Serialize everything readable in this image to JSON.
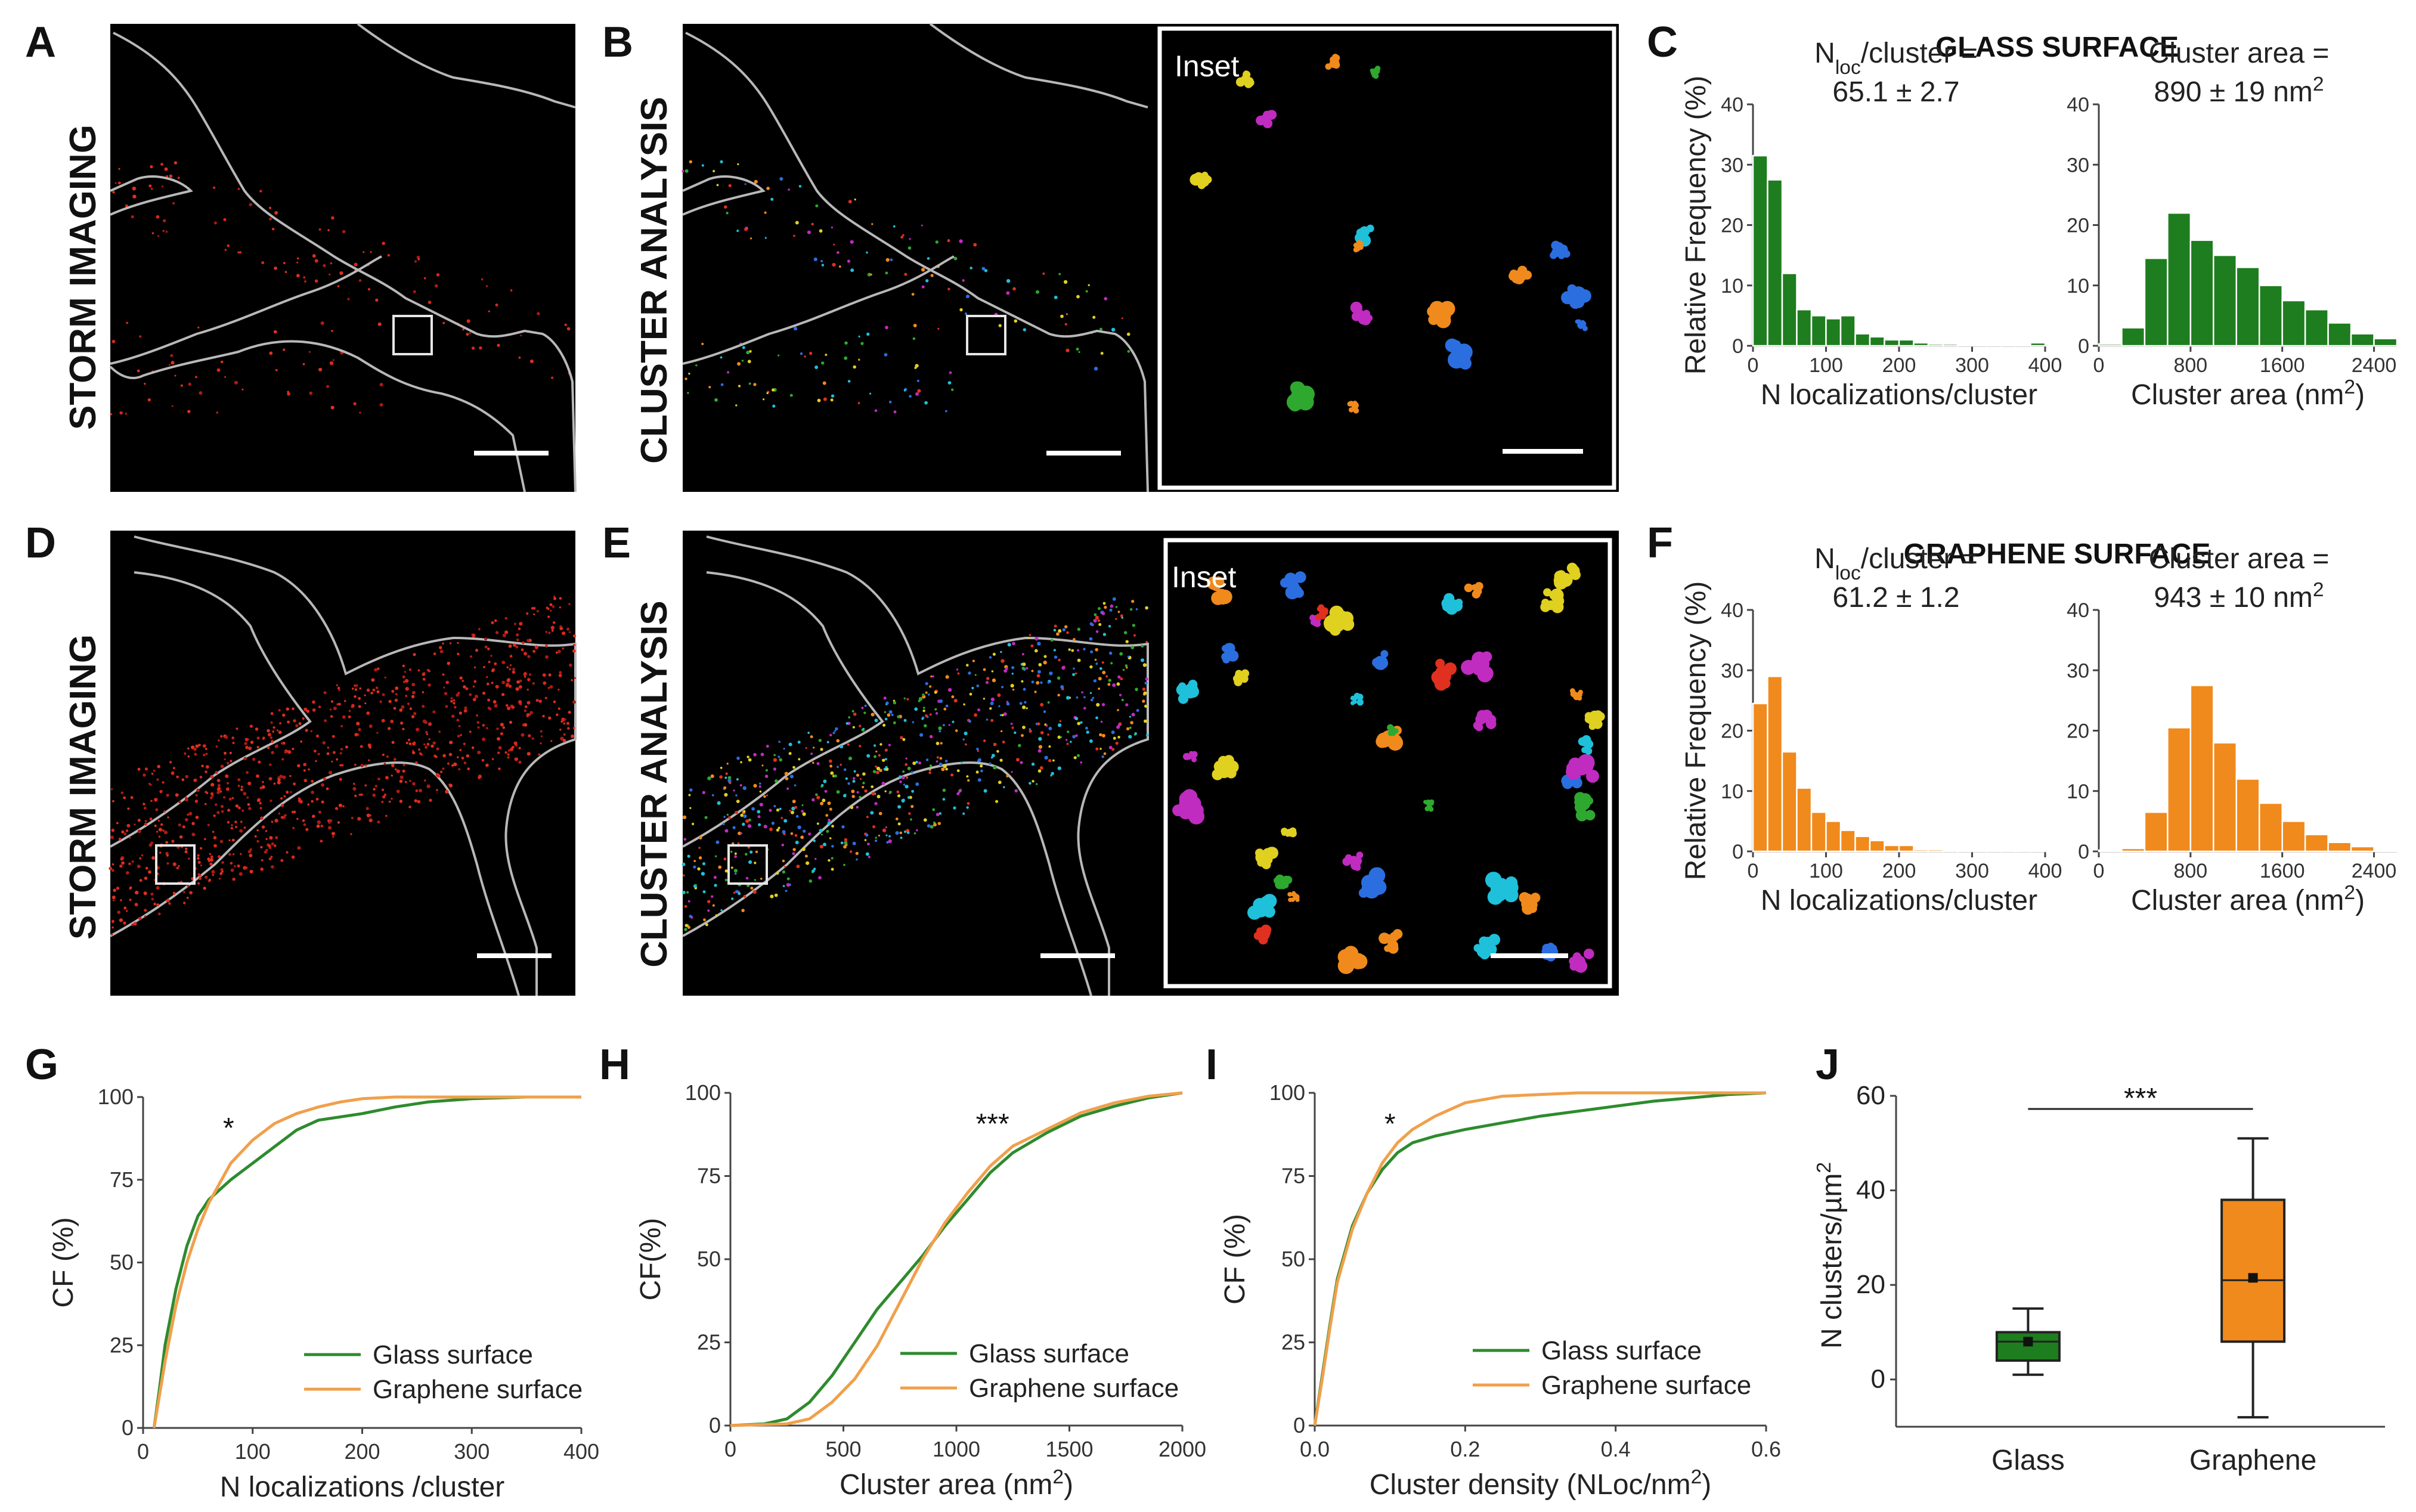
{
  "panels": {
    "A": {
      "letter": "A",
      "label": "STORM IMAGING"
    },
    "B": {
      "letter": "B",
      "label": "CLUSTER ANALYSIS",
      "inset": "Inset"
    },
    "C": {
      "letter": "C",
      "title": "GLASS SURFACE"
    },
    "D": {
      "letter": "D",
      "label": "STORM IMAGING"
    },
    "E": {
      "letter": "E",
      "label": "CLUSTER ANALYSIS",
      "inset": "Inset"
    },
    "F": {
      "letter": "F",
      "title": "GRAPHENE SURFACE"
    },
    "G": {
      "letter": "G"
    },
    "H": {
      "letter": "H"
    },
    "I": {
      "letter": "I"
    },
    "J": {
      "letter": "J"
    }
  },
  "colors": {
    "glass": "#1e7d1e",
    "graphene": "#f08a1c",
    "glass_line": "#2e8b2e",
    "graphene_line": "#f0a04b",
    "outline": "#b8b8b8"
  },
  "chart_data": [
    {
      "id": "C-nloc",
      "type": "bar",
      "panel": "C",
      "annotation_line1": "N",
      "annotation_sub": "loc",
      "annotation_rest": "/cluster =",
      "annotation_line2": "65.1 ± 2.7",
      "xlabel": "N localizations/cluster",
      "ylabel": "Relative Frequency (%)",
      "xlim": [
        0,
        400
      ],
      "ylim": [
        0,
        40
      ],
      "xticks": [
        0,
        100,
        200,
        300,
        400
      ],
      "yticks": [
        0,
        10,
        20,
        30,
        40
      ],
      "bin_width": 20,
      "bin_start": 0,
      "values": [
        31.5,
        27.5,
        12,
        6,
        5,
        4.5,
        5,
        2,
        1.5,
        1,
        1,
        0.5,
        0.3,
        0.3,
        0.2,
        0.2,
        0.1,
        0.1,
        0.1,
        0.5
      ],
      "color": "#1e7d1e"
    },
    {
      "id": "C-area",
      "type": "bar",
      "panel": "C",
      "annotation_line1": "Cluster area =",
      "annotation_line2": "890 ± 19 nm",
      "annotation_sup": "2",
      "xlabel": "Cluster area (nm",
      "xlabel_sup": "2",
      "xlabel_end": ")",
      "ylabel": "",
      "xlim": [
        0,
        2600
      ],
      "ylim": [
        0,
        40
      ],
      "xticks": [
        0,
        800,
        1600,
        2400
      ],
      "yticks": [
        0,
        10,
        20,
        30,
        40
      ],
      "bin_width": 200,
      "bin_start": 0,
      "values": [
        0.3,
        3,
        14.5,
        22,
        17.5,
        15,
        13,
        10,
        7.5,
        6,
        3.8,
        2,
        1.2
      ],
      "color": "#1e7d1e"
    },
    {
      "id": "F-nloc",
      "type": "bar",
      "panel": "F",
      "annotation_line1": "N",
      "annotation_sub": "loc",
      "annotation_rest": "/cluster =",
      "annotation_line2": "61.2 ± 1.2",
      "xlabel": "N localizations/cluster",
      "ylabel": "Relative Frequency (%)",
      "xlim": [
        0,
        400
      ],
      "ylim": [
        0,
        40
      ],
      "xticks": [
        0,
        100,
        200,
        300,
        400
      ],
      "yticks": [
        0,
        10,
        20,
        30,
        40
      ],
      "bin_width": 20,
      "bin_start": 0,
      "values": [
        24.5,
        29,
        16.5,
        10.5,
        6.5,
        5,
        3.5,
        2.5,
        1.8,
        1,
        1,
        0.3,
        0.3,
        0.2,
        0.1,
        0.1,
        0.1,
        0.1,
        0.1,
        0.1
      ],
      "color": "#f08a1c"
    },
    {
      "id": "F-area",
      "type": "bar",
      "panel": "F",
      "annotation_line1": "Cluster area =",
      "annotation_line2": "943 ± 10 nm",
      "annotation_sup": "2",
      "xlabel": "Cluster area (nm",
      "xlabel_sup": "2",
      "xlabel_end": ")",
      "ylabel": "",
      "xlim": [
        0,
        2600
      ],
      "ylim": [
        0,
        40
      ],
      "xticks": [
        0,
        800,
        1600,
        2400
      ],
      "yticks": [
        0,
        10,
        20,
        30,
        40
      ],
      "bin_width": 200,
      "bin_start": 0,
      "values": [
        0.2,
        0.5,
        6.5,
        20.5,
        27.5,
        18,
        12,
        8,
        5,
        2.8,
        1.5,
        0.8,
        0.2
      ],
      "color": "#f08a1c"
    },
    {
      "id": "G",
      "type": "line",
      "panel": "G",
      "xlabel": "N localizations /cluster",
      "ylabel": "CF (%)",
      "xlim": [
        0,
        400
      ],
      "ylim": [
        0,
        100
      ],
      "xticks": [
        0,
        100,
        200,
        300,
        400
      ],
      "yticks": [
        0,
        25,
        50,
        75,
        100
      ],
      "significance": "*",
      "sig_x": 78,
      "sig_y": 100,
      "series": [
        {
          "name": "Glass surface",
          "color": "#2e8b2e",
          "x": [
            10,
            15,
            20,
            30,
            40,
            50,
            60,
            70,
            80,
            100,
            120,
            140,
            160,
            180,
            200,
            230,
            260,
            300,
            350,
            400
          ],
          "y": [
            0,
            12,
            25,
            42,
            55,
            64,
            69,
            72,
            75,
            80,
            85,
            90,
            93,
            94,
            95,
            97,
            98.5,
            99.5,
            100,
            100
          ]
        },
        {
          "name": "Graphene surface",
          "color": "#f0a04b",
          "x": [
            10,
            15,
            20,
            30,
            40,
            50,
            60,
            70,
            80,
            100,
            120,
            140,
            160,
            180,
            200,
            230,
            260,
            300,
            350,
            400
          ],
          "y": [
            0,
            10,
            20,
            37,
            50,
            60,
            68,
            74,
            80,
            87,
            92,
            95,
            97,
            98.5,
            99.5,
            100,
            100,
            100,
            100,
            100
          ]
        }
      ]
    },
    {
      "id": "H",
      "type": "line",
      "panel": "H",
      "xlabel": "Cluster area (nm",
      "xlabel_sup": "2",
      "xlabel_end": ")",
      "ylabel": "CF(%)",
      "xlim": [
        0,
        2000
      ],
      "ylim": [
        0,
        100
      ],
      "xticks": [
        0,
        500,
        1000,
        1500,
        2000
      ],
      "yticks": [
        0,
        25,
        50,
        75,
        100
      ],
      "significance": "***",
      "sig_x": 1160,
      "sig_y": 100,
      "series": [
        {
          "name": "Glass surface",
          "color": "#2e8b2e",
          "x": [
            0,
            150,
            250,
            350,
            450,
            550,
            650,
            750,
            850,
            950,
            1050,
            1150,
            1250,
            1400,
            1550,
            1700,
            1850,
            2000
          ],
          "y": [
            0,
            0.5,
            2,
            7,
            15,
            25,
            35,
            43,
            51,
            60,
            68,
            76,
            82,
            88,
            93,
            96,
            98.5,
            100
          ]
        },
        {
          "name": "Graphene surface",
          "color": "#f0a04b",
          "x": [
            0,
            250,
            350,
            450,
            550,
            650,
            750,
            850,
            950,
            1050,
            1150,
            1250,
            1400,
            1550,
            1700,
            1850,
            2000
          ],
          "y": [
            0,
            0.5,
            2,
            7,
            14,
            24,
            37,
            50,
            61,
            70,
            78,
            84,
            89,
            94,
            97,
            99,
            100
          ]
        }
      ]
    },
    {
      "id": "I",
      "type": "line",
      "panel": "I",
      "xlabel": "Cluster density (NLoc/nm",
      "xlabel_sup": "2",
      "xlabel_end": ")",
      "ylabel": "CF (%)",
      "xlim": [
        0,
        0.6
      ],
      "ylim": [
        0,
        100
      ],
      "xticks": [
        0.0,
        0.2,
        0.4,
        0.6
      ],
      "yticks": [
        0,
        25,
        50,
        75,
        100
      ],
      "significance": "*",
      "sig_x": 0.1,
      "sig_y": 100,
      "series": [
        {
          "name": "Glass surface",
          "color": "#2e8b2e",
          "x": [
            0,
            0.01,
            0.02,
            0.03,
            0.05,
            0.07,
            0.09,
            0.11,
            0.13,
            0.16,
            0.2,
            0.25,
            0.3,
            0.35,
            0.4,
            0.45,
            0.5,
            0.55,
            0.6
          ],
          "y": [
            0,
            15,
            30,
            44,
            60,
            70,
            77,
            82,
            85,
            87,
            89,
            91,
            93,
            94.5,
            96,
            97.5,
            98.5,
            99.5,
            100
          ]
        },
        {
          "name": "Graphene surface",
          "color": "#f0a04b",
          "x": [
            0,
            0.01,
            0.02,
            0.03,
            0.05,
            0.07,
            0.09,
            0.11,
            0.13,
            0.16,
            0.2,
            0.25,
            0.3,
            0.35,
            0.4,
            0.5,
            0.6
          ],
          "y": [
            0,
            14,
            29,
            43,
            59,
            70,
            79,
            85,
            89,
            93,
            97,
            99,
            99.5,
            100,
            100,
            100,
            100
          ]
        }
      ]
    },
    {
      "id": "J",
      "type": "box",
      "panel": "J",
      "ylabel": "N clusters/µm",
      "ylabel_sup": "2",
      "ylim": [
        -10,
        60
      ],
      "yticks": [
        0,
        20,
        40,
        60
      ],
      "categories": [
        "Glass",
        "Graphene"
      ],
      "significance": "***",
      "boxes": [
        {
          "name": "Glass",
          "color": "#1e7d1e",
          "whisker_low": 1,
          "q1": 4,
          "median": 8,
          "q3": 10,
          "whisker_high": 15,
          "mean": 8
        },
        {
          "name": "Graphene",
          "color": "#f08a1c",
          "whisker_low": -8,
          "q1": 8,
          "median": 21,
          "q3": 38,
          "whisker_high": 51,
          "mean": 21.5
        }
      ]
    }
  ]
}
